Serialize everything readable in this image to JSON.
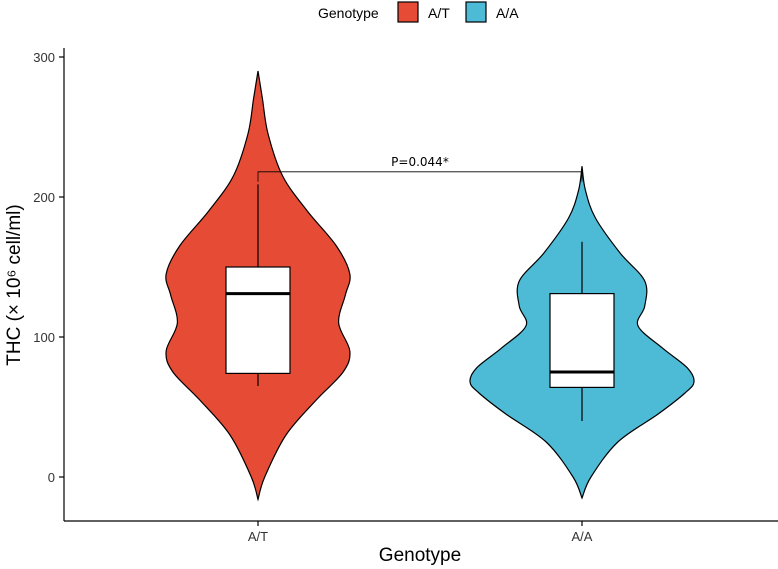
{
  "chart_data": {
    "type": "violin",
    "xlabel": "Genotype",
    "ylabel": "THC (× 10⁶ cell/ml)",
    "ylim": [
      -30,
      305
    ],
    "yticks": [
      0,
      100,
      200,
      300
    ],
    "categories": [
      "A/T",
      "A/A"
    ],
    "legend": {
      "title": "Genotype",
      "position": "top",
      "entries": [
        {
          "label": "A/T",
          "color": "#E64B35"
        },
        {
          "label": "A/A",
          "color": "#4DBBD5"
        }
      ]
    },
    "series": [
      {
        "name": "A/T",
        "color": "#E64B35",
        "violin": {
          "min": -16,
          "max": 290,
          "profile": [
            [
              -16,
              0.0
            ],
            [
              0,
              0.06
            ],
            [
              30,
              0.25
            ],
            [
              55,
              0.52
            ],
            [
              75,
              0.76
            ],
            [
              90,
              0.82
            ],
            [
              110,
              0.72
            ],
            [
              130,
              0.78
            ],
            [
              145,
              0.82
            ],
            [
              165,
              0.7
            ],
            [
              190,
              0.44
            ],
            [
              215,
              0.22
            ],
            [
              245,
              0.09
            ],
            [
              270,
              0.04
            ],
            [
              290,
              0.0
            ]
          ]
        },
        "box": {
          "min": 65,
          "q1": 74,
          "median": 131,
          "q3": 150,
          "max": 209
        }
      },
      {
        "name": "A/A",
        "color": "#4DBBD5",
        "violin": {
          "min": -15,
          "max": 222,
          "profile": [
            [
              -15,
              0.0
            ],
            [
              0,
              0.08
            ],
            [
              25,
              0.32
            ],
            [
              45,
              0.68
            ],
            [
              60,
              0.92
            ],
            [
              68,
              1.0
            ],
            [
              78,
              0.94
            ],
            [
              92,
              0.72
            ],
            [
              108,
              0.5
            ],
            [
              122,
              0.56
            ],
            [
              140,
              0.56
            ],
            [
              160,
              0.34
            ],
            [
              185,
              0.12
            ],
            [
              205,
              0.03
            ],
            [
              222,
              0.0
            ]
          ]
        },
        "box": {
          "min": 40,
          "q1": 64,
          "median": 75,
          "q3": 131,
          "max": 168
        }
      }
    ],
    "annotation": {
      "text": "P=0.044*",
      "y": 218
    }
  }
}
